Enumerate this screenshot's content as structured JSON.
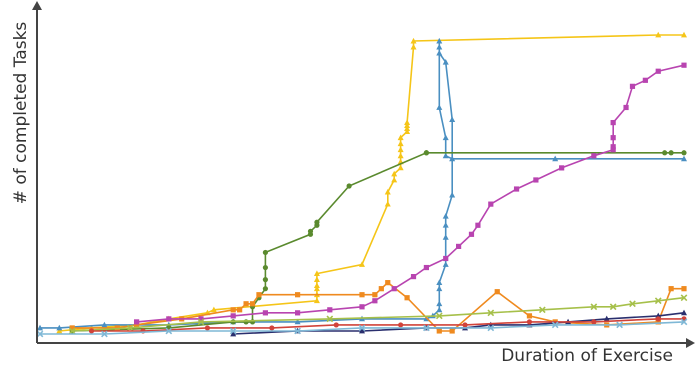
{
  "chart_data": {
    "type": "line",
    "title": "",
    "xlabel": "Duration of Exercise",
    "ylabel": "# of completed Tasks",
    "xlim": [
      0,
      100
    ],
    "ylim": [
      0,
      100
    ],
    "grid": false,
    "legend": "none",
    "series": [
      {
        "color": "#f5c518",
        "marker": "triangle",
        "x": [
          3,
          8,
          15,
          20,
          26,
          27,
          43,
          43,
          43,
          43,
          43,
          43,
          50,
          54,
          54,
          55,
          55,
          56,
          56,
          56,
          56,
          56,
          56,
          57,
          57,
          57,
          57,
          58,
          58,
          96,
          100
        ],
        "y": [
          2,
          3,
          4,
          6,
          8,
          9,
          12,
          14,
          16,
          17,
          19,
          21,
          24,
          44,
          48,
          52,
          54,
          56,
          58,
          60,
          62,
          64,
          66,
          68,
          69,
          70,
          71,
          96,
          98,
          100,
          100
        ]
      },
      {
        "color": "#4a8fc1",
        "marker": "triangle",
        "x": [
          0,
          3,
          10,
          20,
          30,
          40,
          50,
          60,
          61,
          62,
          62,
          62,
          62,
          63,
          63,
          63,
          63,
          64,
          64,
          63,
          62,
          62,
          62,
          62,
          63,
          63,
          64,
          80,
          100
        ],
        "y": [
          3,
          3,
          4,
          4,
          5,
          5,
          6,
          6,
          7,
          9,
          11,
          16,
          18,
          24,
          33,
          37,
          40,
          47,
          72,
          91,
          94,
          96,
          98,
          76,
          66,
          60,
          59,
          59,
          59
        ]
      },
      {
        "color": "#5a8a2e",
        "marker": "circle",
        "x": [
          5,
          20,
          30,
          32,
          33,
          33,
          34,
          35,
          35,
          35,
          35,
          42,
          42,
          43,
          43,
          48,
          60,
          60,
          97,
          98,
          100
        ],
        "y": [
          2,
          3,
          5,
          5,
          5,
          10,
          13,
          16,
          19,
          23,
          28,
          34,
          35,
          37,
          38,
          50,
          61,
          61,
          61,
          61,
          61
        ]
      },
      {
        "color": "#ef8a1f",
        "marker": "square",
        "x": [
          5,
          12,
          15,
          22,
          30,
          31,
          32,
          33,
          34,
          40,
          50,
          52,
          53,
          54,
          57,
          62,
          64,
          71,
          76,
          80,
          88,
          96,
          96,
          98,
          100
        ],
        "y": [
          3,
          3,
          4,
          6,
          9,
          9,
          11,
          11,
          14,
          14,
          14,
          14,
          16,
          18,
          13,
          2,
          2,
          15,
          7,
          5,
          4,
          5,
          5,
          16,
          16
        ]
      },
      {
        "color": "#b844b0",
        "marker": "square",
        "x": [
          15,
          20,
          25,
          30,
          35,
          40,
          45,
          50,
          52,
          55,
          58,
          60,
          63,
          65,
          67,
          68,
          70,
          74,
          77,
          81,
          86,
          89,
          89,
          89,
          89,
          91,
          92,
          94,
          96,
          100
        ],
        "y": [
          5,
          6,
          6,
          7,
          8,
          8,
          9,
          10,
          12,
          16,
          20,
          23,
          26,
          30,
          34,
          37,
          44,
          49,
          52,
          56,
          60,
          62,
          63,
          66,
          71,
          76,
          83,
          85,
          88,
          90
        ]
      },
      {
        "color": "#a6c04a",
        "marker": "x",
        "x": [
          5,
          14,
          25,
          45,
          62,
          70,
          78,
          86,
          89,
          92,
          96,
          100
        ],
        "y": [
          2,
          3,
          5,
          6,
          7,
          8,
          9,
          10,
          10,
          11,
          12,
          13
        ]
      },
      {
        "color": "#2a2f6e",
        "marker": "triangle",
        "x": [
          30,
          40,
          50,
          60,
          66,
          70,
          76,
          82,
          88,
          96,
          100
        ],
        "y": [
          1,
          2,
          2,
          3,
          3,
          4,
          4,
          5,
          6,
          7,
          8
        ]
      },
      {
        "color": "#d1433a",
        "marker": "circle",
        "x": [
          8,
          16,
          26,
          36,
          46,
          56,
          66,
          76,
          86,
          96,
          100
        ],
        "y": [
          2,
          2,
          3,
          3,
          4,
          4,
          4,
          5,
          5,
          6,
          6
        ]
      },
      {
        "color": "#7fb8d6",
        "marker": "x",
        "x": [
          0,
          10,
          20,
          30,
          40,
          50,
          60,
          70,
          80,
          90,
          100
        ],
        "y": [
          1,
          1,
          2,
          2,
          2,
          3,
          3,
          3,
          4,
          4,
          5
        ]
      }
    ]
  }
}
